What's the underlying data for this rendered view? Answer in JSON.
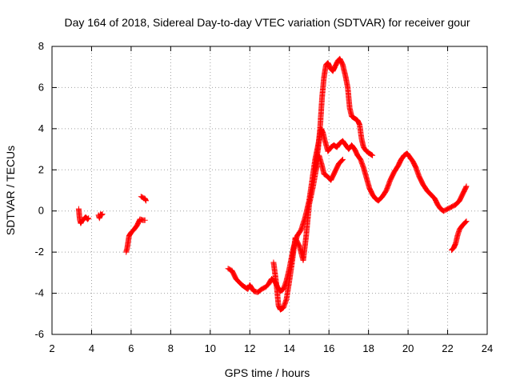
{
  "chart_data": {
    "type": "scatter",
    "marker": "+",
    "title": "Day 164 of 2018, Sidereal Day-to-day VTEC variation (SDTVAR) for receiver gour",
    "xlabel": "GPS time / hours",
    "ylabel": "SDTVAR / TECUs",
    "xlim": [
      2,
      24
    ],
    "ylim": [
      -6,
      8
    ],
    "x_ticks": [
      2,
      4,
      6,
      8,
      10,
      12,
      14,
      16,
      18,
      20,
      22,
      24
    ],
    "y_ticks": [
      -6,
      -4,
      -2,
      0,
      2,
      4,
      6,
      8
    ],
    "grid": true,
    "colors": {
      "series": "#ff0000",
      "grid": "#a0a0a0",
      "frame": "#000000"
    },
    "series": [
      {
        "name": "SDTVAR",
        "segments": [
          [
            [
              3.35,
              0.1
            ],
            [
              3.4,
              -0.4
            ],
            [
              3.45,
              -0.6
            ],
            [
              3.5,
              -0.5
            ],
            [
              3.6,
              -0.4
            ],
            [
              3.7,
              -0.3
            ],
            [
              3.8,
              -0.4
            ],
            [
              3.85,
              -0.35
            ]
          ],
          [
            [
              4.35,
              -0.2
            ],
            [
              4.4,
              -0.35
            ],
            [
              4.45,
              -0.15
            ],
            [
              4.5,
              -0.2
            ],
            [
              4.55,
              -0.15
            ]
          ],
          [
            [
              5.75,
              -2.0
            ],
            [
              5.8,
              -1.8
            ],
            [
              5.9,
              -1.2
            ],
            [
              6.0,
              -1.05
            ],
            [
              6.15,
              -0.9
            ],
            [
              6.3,
              -0.7
            ],
            [
              6.45,
              -0.4
            ],
            [
              6.6,
              -0.45
            ],
            [
              6.7,
              -0.45
            ]
          ],
          [
            [
              6.5,
              0.7
            ],
            [
              6.6,
              0.65
            ],
            [
              6.7,
              0.6
            ],
            [
              6.75,
              0.5
            ]
          ],
          [
            [
              10.9,
              -2.8
            ],
            [
              11.1,
              -2.9
            ],
            [
              11.3,
              -3.3
            ],
            [
              11.6,
              -3.6
            ],
            [
              11.9,
              -3.8
            ],
            [
              12.0,
              -3.6
            ],
            [
              12.2,
              -3.9
            ],
            [
              12.4,
              -3.95
            ],
            [
              12.6,
              -3.8
            ],
            [
              12.8,
              -3.7
            ],
            [
              12.95,
              -3.55
            ],
            [
              13.1,
              -3.3
            ],
            [
              13.25,
              -3.4
            ],
            [
              13.4,
              -3.7
            ],
            [
              13.55,
              -3.9
            ],
            [
              13.7,
              -3.8
            ],
            [
              13.85,
              -3.4
            ],
            [
              14.0,
              -2.8
            ],
            [
              14.2,
              -1.8
            ],
            [
              14.4,
              -1.2
            ],
            [
              14.6,
              -0.9
            ],
            [
              14.8,
              -0.3
            ],
            [
              15.0,
              0.5
            ],
            [
              15.15,
              1.5
            ],
            [
              15.3,
              2.5
            ],
            [
              15.45,
              3.2
            ],
            [
              15.6,
              4.0
            ],
            [
              15.7,
              3.8
            ],
            [
              15.8,
              3.4
            ],
            [
              15.95,
              2.9
            ],
            [
              16.1,
              3.1
            ],
            [
              16.25,
              3.2
            ],
            [
              16.4,
              3.1
            ],
            [
              16.55,
              3.3
            ],
            [
              16.7,
              3.4
            ],
            [
              16.85,
              3.2
            ],
            [
              17.0,
              3.0
            ],
            [
              17.15,
              3.2
            ],
            [
              17.3,
              3.0
            ],
            [
              17.45,
              2.7
            ],
            [
              17.6,
              2.5
            ],
            [
              17.75,
              2.1
            ],
            [
              17.9,
              1.6
            ],
            [
              18.05,
              1.1
            ],
            [
              18.2,
              0.8
            ],
            [
              18.35,
              0.6
            ],
            [
              18.5,
              0.5
            ],
            [
              18.7,
              0.7
            ],
            [
              18.9,
              1.0
            ],
            [
              19.1,
              1.5
            ],
            [
              19.3,
              1.9
            ],
            [
              19.5,
              2.2
            ],
            [
              19.65,
              2.5
            ],
            [
              19.8,
              2.7
            ],
            [
              19.95,
              2.8
            ],
            [
              20.1,
              2.6
            ],
            [
              20.25,
              2.4
            ],
            [
              20.4,
              2.1
            ],
            [
              20.55,
              1.7
            ],
            [
              20.75,
              1.3
            ],
            [
              20.95,
              1.0
            ],
            [
              21.15,
              0.8
            ],
            [
              21.35,
              0.6
            ],
            [
              21.5,
              0.3
            ],
            [
              21.65,
              0.1
            ],
            [
              21.8,
              0.0
            ],
            [
              22.0,
              0.1
            ],
            [
              22.2,
              0.2
            ],
            [
              22.4,
              0.3
            ],
            [
              22.6,
              0.5
            ],
            [
              22.8,
              0.9
            ],
            [
              22.95,
              1.2
            ]
          ],
          [
            [
              13.2,
              -2.5
            ],
            [
              13.35,
              -3.6
            ],
            [
              13.45,
              -4.6
            ],
            [
              13.55,
              -4.8
            ],
            [
              13.7,
              -4.7
            ],
            [
              13.85,
              -4.3
            ],
            [
              14.0,
              -3.4
            ],
            [
              14.15,
              -2.4
            ],
            [
              14.3,
              -1.3
            ],
            [
              14.5,
              -1.7
            ],
            [
              14.7,
              -2.4
            ],
            [
              14.85,
              -1.2
            ],
            [
              15.0,
              0.3
            ],
            [
              15.2,
              1.2
            ],
            [
              15.35,
              2.0
            ],
            [
              15.5,
              2.7
            ],
            [
              15.65,
              2.2
            ],
            [
              15.75,
              1.8
            ],
            [
              15.9,
              1.7
            ],
            [
              16.0,
              1.6
            ],
            [
              16.1,
              1.5
            ],
            [
              16.3,
              1.9
            ],
            [
              16.5,
              2.3
            ],
            [
              16.7,
              2.5
            ]
          ],
          [
            [
              15.3,
              2.0
            ],
            [
              15.45,
              3.0
            ],
            [
              15.55,
              4.0
            ],
            [
              15.65,
              5.5
            ],
            [
              15.75,
              6.5
            ],
            [
              15.85,
              7.1
            ],
            [
              15.95,
              7.2
            ],
            [
              16.1,
              6.9
            ],
            [
              16.2,
              6.8
            ],
            [
              16.3,
              7.0
            ],
            [
              16.45,
              7.3
            ],
            [
              16.55,
              7.4
            ],
            [
              16.7,
              7.1
            ],
            [
              16.85,
              6.5
            ],
            [
              16.95,
              6.0
            ],
            [
              17.05,
              5.0
            ],
            [
              17.15,
              4.6
            ],
            [
              17.3,
              4.5
            ],
            [
              17.45,
              4.4
            ],
            [
              17.55,
              4.2
            ],
            [
              17.65,
              3.5
            ],
            [
              17.75,
              3.1
            ],
            [
              17.9,
              2.9
            ],
            [
              18.05,
              2.8
            ],
            [
              18.2,
              2.7
            ]
          ],
          [
            [
              22.2,
              -1.9
            ],
            [
              22.3,
              -1.8
            ],
            [
              22.4,
              -1.6
            ],
            [
              22.5,
              -1.2
            ],
            [
              22.6,
              -0.9
            ],
            [
              22.75,
              -0.7
            ],
            [
              22.85,
              -0.6
            ],
            [
              22.95,
              -0.5
            ]
          ]
        ]
      }
    ]
  }
}
